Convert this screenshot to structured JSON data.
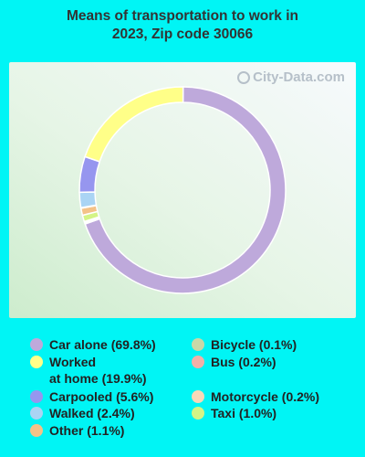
{
  "title_lines": [
    "Means of transportation to work in",
    "2023, Zip code 30066"
  ],
  "watermark": "City-Data.com",
  "chart_data": {
    "type": "pie",
    "title": "Means of transportation to work in 2023, Zip code 30066",
    "legend_placement": "bottom",
    "series": [
      {
        "label_lines": [
          "Car alone (69.8%)"
        ],
        "value": 69.8,
        "color": "#bea9db"
      },
      {
        "label_lines": [
          "Worked",
          "at home (19.9%)"
        ],
        "value": 19.9,
        "color": "#ffff88"
      },
      {
        "label_lines": [
          "Carpooled (5.6%)"
        ],
        "value": 5.6,
        "color": "#9696ef"
      },
      {
        "label_lines": [
          "Walked (2.4%)"
        ],
        "value": 2.4,
        "color": "#aad4f4"
      },
      {
        "label_lines": [
          "Other (1.1%)"
        ],
        "value": 1.1,
        "color": "#f4c288"
      },
      {
        "label_lines": [
          "Bicycle (0.1%)"
        ],
        "value": 0.1,
        "color": "#c8d8a8"
      },
      {
        "label_lines": [
          "Bus (0.2%)"
        ],
        "value": 0.2,
        "color": "#f2b0a8"
      },
      {
        "label_lines": [
          "Motorcycle (0.2%)"
        ],
        "value": 0.2,
        "color": "#f8d8b8"
      },
      {
        "label_lines": [
          "Taxi (1.0%)"
        ],
        "value": 1.0,
        "color": "#d4f486"
      }
    ],
    "ring_order": [
      0,
      6,
      7,
      8,
      4,
      5,
      3,
      2,
      1
    ]
  }
}
